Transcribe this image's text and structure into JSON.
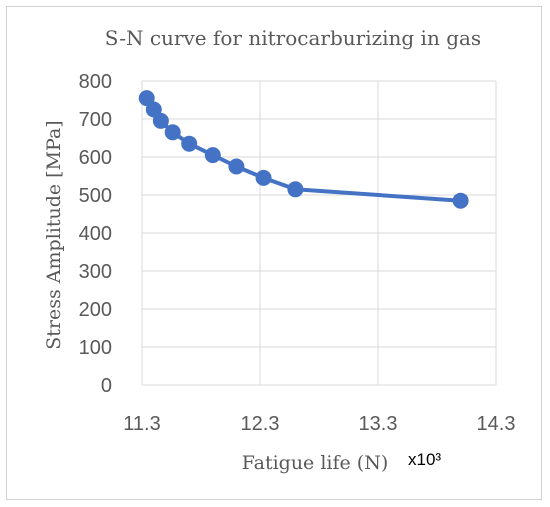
{
  "chart_data": {
    "type": "line",
    "title": "S-N curve for nitrocarburizing in gas",
    "xlabel": "Fatigue life (N)",
    "ylabel": "Stress Amplitude [MPa]",
    "x_multiplier": "x10³",
    "xlim": [
      11.3,
      14.3
    ],
    "ylim": [
      0,
      800
    ],
    "x_ticks": [
      11.3,
      12.3,
      13.3,
      14.3
    ],
    "x_tick_labels": [
      "11.3",
      "12.3",
      "13.3",
      "14.3"
    ],
    "y_ticks": [
      0,
      100,
      200,
      300,
      400,
      500,
      600,
      700,
      800
    ],
    "y_tick_labels": [
      "0",
      "100",
      "200",
      "300",
      "400",
      "500",
      "600",
      "700",
      "800"
    ],
    "grid": true,
    "series_color": "#4472c4",
    "series": [
      {
        "x": [
          11.34,
          11.4,
          11.46,
          11.56,
          11.7,
          11.9,
          12.1,
          12.33,
          12.6,
          14.0
        ],
        "y": [
          755,
          725,
          695,
          665,
          635,
          605,
          575,
          545,
          515,
          485
        ]
      }
    ]
  }
}
